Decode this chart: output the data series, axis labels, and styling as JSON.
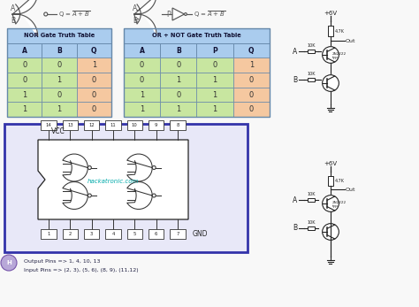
{
  "bg_color": "#f8f8f8",
  "table_header_color": "#aaccee",
  "table_ab_color": "#c8e6a0",
  "table_q_color": "#f5c8a0",
  "table_border_color": "#6688aa",
  "nor_truth": [
    [
      "A",
      "B",
      "Q"
    ],
    [
      "0",
      "0",
      "1"
    ],
    [
      "0",
      "1",
      "0"
    ],
    [
      "1",
      "0",
      "0"
    ],
    [
      "1",
      "1",
      "0"
    ]
  ],
  "or_not_truth": [
    [
      "A",
      "B",
      "P",
      "Q"
    ],
    [
      "0",
      "0",
      "0",
      "1"
    ],
    [
      "0",
      "1",
      "1",
      "0"
    ],
    [
      "1",
      "0",
      "1",
      "0"
    ],
    [
      "1",
      "1",
      "1",
      "0"
    ]
  ],
  "nor_title": "NOR Gate Truth Table",
  "or_not_title": "OR + NOT Gate Truth Table",
  "ic_box_color": "#3333aa",
  "watermark": "hackatronic.com",
  "watermark_color": "#00aaaa",
  "output_pins_text": "Output Pins => 1, 4, 10, 13",
  "input_pins_text": "Input Pins => (2, 3), (5, 6), (8, 9), (11,12)",
  "vcc_label": "VCC",
  "gnd_label": "GND",
  "logo_color": "#9988cc",
  "line_color": "#333333",
  "plus6v": "+6V",
  "resistor_color": "#222222"
}
